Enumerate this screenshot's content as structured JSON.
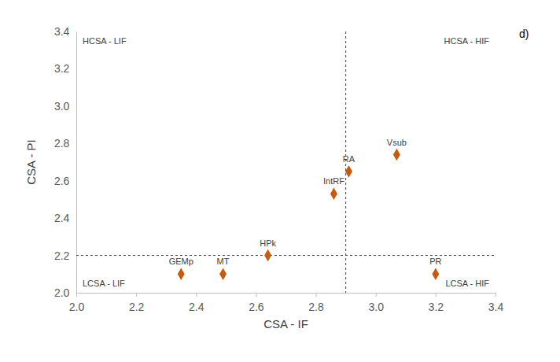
{
  "chart_data": {
    "type": "scatter",
    "x_label": "CSA - IF",
    "y_label": "CSA - PI",
    "panel_label": "d)",
    "labels": [
      "GEMp",
      "MT",
      "HPk",
      "IntRF",
      "RA",
      "Vsub",
      "PR"
    ],
    "x": [
      2.35,
      2.49,
      2.64,
      2.86,
      2.91,
      3.07,
      3.2
    ],
    "values": [
      2.1,
      2.1,
      2.2,
      2.53,
      2.65,
      2.74,
      2.1
    ],
    "color": "#c55a11",
    "marker": "diamond",
    "xlim": [
      2.0,
      3.4
    ],
    "ylim": [
      2.0,
      3.4
    ],
    "xticks": [
      {
        "value": 2.0,
        "label": "2.0"
      },
      2.2,
      2.4,
      2.6,
      2.8,
      {
        "value": 3.0,
        "label": "3.0"
      },
      3.2,
      3.4
    ],
    "yticks": [
      {
        "value": 2.0,
        "label": "2.0"
      },
      2.2,
      2.4,
      2.6,
      2.8,
      {
        "value": 3.0,
        "label": "3.0"
      },
      3.2,
      3.4
    ],
    "grid": false,
    "x_reference": 2.9,
    "y_reference": 2.2,
    "annotations": [
      {
        "text": "HCSA - LIF",
        "position": "top-left"
      },
      {
        "text": "HCSA - HIF",
        "position": "top-right"
      },
      {
        "text": "LCSA - LIF",
        "position": "bottom-left"
      },
      {
        "text": "LCSA - HIF",
        "position": "bottom-right"
      }
    ]
  }
}
